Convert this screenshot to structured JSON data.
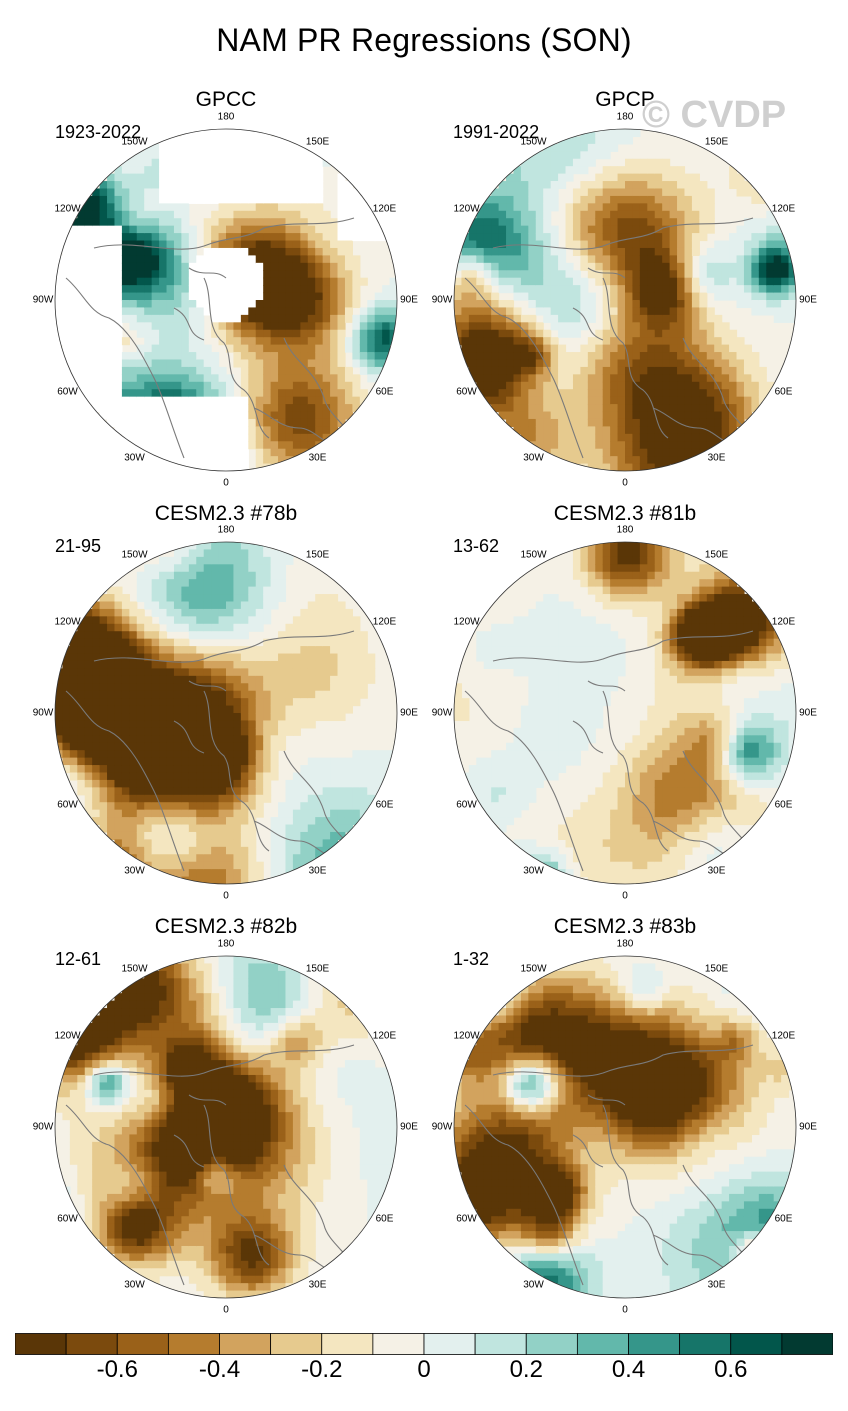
{
  "title": "NAM PR Regressions (SON)",
  "watermark": "© CVDP",
  "colors": {
    "land_outline": "#7a7a7a",
    "missing": "#ffffff",
    "border": "#333333"
  },
  "chart_data": {
    "type": "heatmap",
    "projection": "polar stereographic (Northern Hemisphere)",
    "variable": "PR regression onto NAM index",
    "season": "SON",
    "longitude_labels": [
      "180",
      "150E",
      "120E",
      "90E",
      "60E",
      "30E",
      "0",
      "30W",
      "60W",
      "90W",
      "120W",
      "150W"
    ],
    "panels": [
      {
        "title": "GPCC",
        "period": "1923-2022",
        "has_missing_data": true,
        "seed": 11
      },
      {
        "title": "GPCP",
        "period": "1991-2022",
        "has_missing_data": false,
        "seed": 23
      },
      {
        "title": "CESM2.3 #78b",
        "period": "21-95",
        "has_missing_data": false,
        "seed": 37
      },
      {
        "title": "CESM2.3 #81b",
        "period": "13-62",
        "has_missing_data": false,
        "seed": 41
      },
      {
        "title": "CESM2.3 #82b",
        "period": "12-61",
        "has_missing_data": false,
        "seed": 53
      },
      {
        "title": "CESM2.3 #83b",
        "period": "1-32",
        "has_missing_data": false,
        "seed": 67
      }
    ],
    "colorbar": {
      "levels": [
        -0.7,
        -0.6,
        -0.5,
        -0.4,
        -0.3,
        -0.2,
        -0.1,
        0,
        0.1,
        0.2,
        0.3,
        0.4,
        0.5,
        0.6,
        0.7
      ],
      "colors": [
        "#5a3607",
        "#7b4a0d",
        "#9a6119",
        "#b57c2e",
        "#d2a35e",
        "#e6ca8e",
        "#f4e6c0",
        "#f5f1e6",
        "#e3f0ee",
        "#c0e5df",
        "#92d1c6",
        "#62b8ab",
        "#35968a",
        "#167569",
        "#02564b",
        "#023a31"
      ],
      "tick_labels": [
        "-0.6",
        "-0.4",
        "-0.2",
        "0",
        "0.2",
        "0.4",
        "0.6"
      ]
    }
  }
}
